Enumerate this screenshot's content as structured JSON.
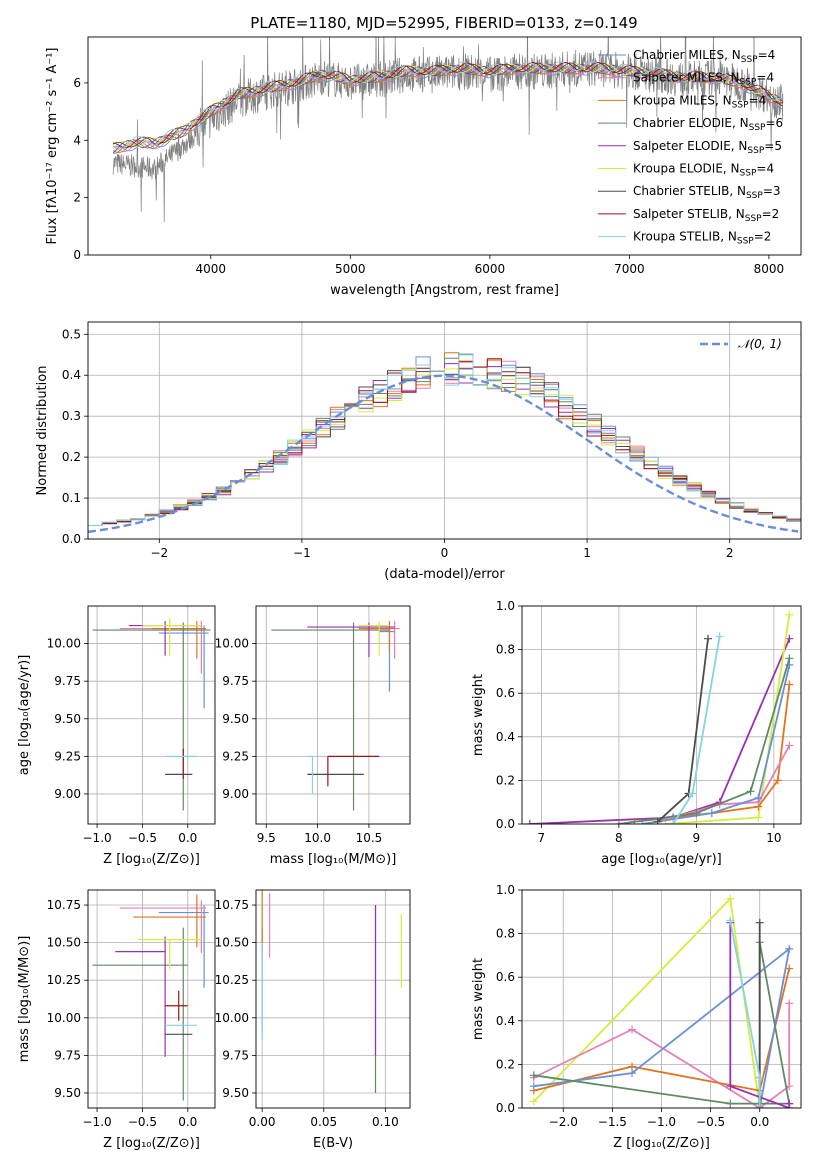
{
  "title": "PLATE=1180, MJD=52995, FIBERID=0133, z=0.149",
  "colors": {
    "blue": "#6a8fd8",
    "pink": "#e87fb4",
    "orange": "#e07420",
    "green": "#5e8a66",
    "purple": "#9b2fb1",
    "yellow": "#d6ec3c",
    "dark": "#4c4c4c",
    "red": "#9c1515",
    "cyan": "#86d2e6",
    "gray": "#808080"
  },
  "chart_data": [
    {
      "id": "spectrum",
      "type": "line",
      "xlabel": "wavelength [Angstrom, rest frame]",
      "ylabel": "Flux [fλ10⁻¹⁷ erg cm⁻² s⁻¹ A⁻¹]",
      "xlim": [
        3120,
        8230
      ],
      "ylim": [
        0,
        7.6
      ],
      "xticks": [
        4000,
        5000,
        6000,
        7000,
        8000
      ],
      "yticks": [
        0,
        2,
        4,
        6
      ],
      "grid": false,
      "legend_position": "top-right",
      "legend": [
        {
          "label": "Chabrier MILES, N",
          "sub": "SSP",
          "suffix": "=4",
          "color": "blue"
        },
        {
          "label": "Salpeter MILES, N",
          "sub": "SSP",
          "suffix": "=4",
          "color": "pink"
        },
        {
          "label": "Kroupa MILES, N",
          "sub": "SSP",
          "suffix": "=4",
          "color": "orange"
        },
        {
          "label": "Chabrier ELODIE, N",
          "sub": "SSP",
          "suffix": "=6",
          "color": "green"
        },
        {
          "label": "Salpeter ELODIE, N",
          "sub": "SSP",
          "suffix": "=5",
          "color": "purple"
        },
        {
          "label": "Kroupa ELODIE, N",
          "sub": "SSP",
          "suffix": "=4",
          "color": "yellow"
        },
        {
          "label": "Chabrier STELIB, N",
          "sub": "SSP",
          "suffix": "=3",
          "color": "dark"
        },
        {
          "label": "Salpeter STELIB, N",
          "sub": "SSP",
          "suffix": "=2",
          "color": "red"
        },
        {
          "label": "Kroupa STELIB, N",
          "sub": "SSP",
          "suffix": "=2",
          "color": "cyan"
        }
      ],
      "data_series": {
        "name": "",
        "color": "gray",
        "x": [
          3300,
          3450,
          3600,
          3800,
          4000,
          4200,
          4400,
          4600,
          4800,
          5000,
          5200,
          5400,
          5600,
          5800,
          6000,
          6200,
          6400,
          6600,
          6800,
          7000,
          7200,
          7400,
          7600,
          7800,
          8100
        ],
        "y": [
          3.2,
          3.1,
          3.0,
          3.8,
          4.7,
          5.4,
          5.7,
          5.9,
          6.2,
          6.0,
          6.1,
          6.3,
          6.3,
          6.4,
          6.3,
          6.4,
          6.4,
          6.5,
          6.5,
          6.4,
          6.3,
          6.1,
          6.2,
          6.0,
          5.3
        ]
      },
      "model_series": {
        "x": [
          3300,
          3450,
          3600,
          3800,
          4000,
          4200,
          4400,
          4600,
          4800,
          5000,
          5200,
          5400,
          5600,
          5800,
          6000,
          6200,
          6400,
          6600,
          6800,
          7000,
          7200,
          7400,
          7600,
          7800,
          8100
        ],
        "y": [
          3.7,
          3.9,
          3.9,
          4.3,
          5.0,
          5.6,
          5.8,
          6.0,
          6.3,
          6.1,
          6.2,
          6.4,
          6.4,
          6.5,
          6.4,
          6.5,
          6.5,
          6.5,
          6.5,
          6.4,
          6.3,
          6.2,
          6.2,
          6.0,
          5.3
        ]
      }
    },
    {
      "id": "residuals",
      "type": "histogram",
      "xlabel": "(data-model)/error",
      "ylabel": "Normed distribution",
      "xlim": [
        -2.5,
        2.5
      ],
      "ylim": [
        0,
        0.53
      ],
      "xticks": [
        -2,
        -1,
        0,
        1,
        2
      ],
      "yticks": [
        0.0,
        0.1,
        0.2,
        0.3,
        0.4,
        0.5
      ],
      "grid": true,
      "legend_position": "top-right",
      "legend_label": "𝒩(0, 1)",
      "gaussian": {
        "mean": 0.0,
        "sigma": 1.0,
        "color": "blue"
      }
    },
    {
      "id": "age-vs-z",
      "type": "errorbar",
      "xlabel": "Z [log₁₀(Z/Z⊙)]",
      "ylabel": "age  [log₁₀(age/yr)]",
      "xlim": [
        -1.1,
        0.3
      ],
      "ylim": [
        8.8,
        10.25
      ],
      "xticks": [
        -1.0,
        -0.5,
        0.0
      ],
      "yticks": [
        9.0,
        9.25,
        9.5,
        9.75,
        10.0
      ],
      "grid": true,
      "points": [
        {
          "color": "blue",
          "x": 0.18,
          "xerr": [
            0.5,
            0.05
          ],
          "y": 10.07,
          "yerr": [
            0.5,
            0.05
          ]
        },
        {
          "color": "pink",
          "x": 0.15,
          "xerr": [
            0.9,
            0.05
          ],
          "y": 10.1,
          "yerr": [
            0.3,
            0.05
          ]
        },
        {
          "color": "orange",
          "x": 0.1,
          "xerr": [
            0.5,
            0.1
          ],
          "y": 10.1,
          "yerr": [
            0.2,
            0.05
          ]
        },
        {
          "color": "green",
          "x": -0.05,
          "xerr": [
            1.0,
            0.3
          ],
          "y": 10.09,
          "yerr": [
            1.2,
            0.05
          ]
        },
        {
          "color": "purple",
          "x": -0.25,
          "xerr": [
            0.4,
            0.4
          ],
          "y": 10.12,
          "yerr": [
            0.2,
            0.03
          ]
        },
        {
          "color": "yellow",
          "x": -0.2,
          "xerr": [
            0.3,
            0.35
          ],
          "y": 10.12,
          "yerr": [
            0.2,
            0.05
          ]
        },
        {
          "color": "dark",
          "x": -0.1,
          "xerr": [
            0.15,
            0.15
          ],
          "y": 9.13,
          "yerr": [
            0.0,
            0.0
          ]
        },
        {
          "color": "red",
          "x": -0.05,
          "xerr": [
            0.0,
            0.0
          ],
          "y": 9.3,
          "yerr": [
            0.2,
            0.0
          ]
        },
        {
          "color": "cyan",
          "x": -0.1,
          "xerr": [
            0.15,
            0.2
          ],
          "y": 9.25,
          "yerr": [
            0.0,
            0.0
          ]
        }
      ]
    },
    {
      "id": "age-vs-mass",
      "type": "errorbar",
      "xlabel": "mass [log₁₀(M/M⊙)]",
      "ylabel": "",
      "xlim": [
        9.4,
        10.9
      ],
      "ylim": [
        8.8,
        10.25
      ],
      "xticks": [
        9.5,
        10.0,
        10.5
      ],
      "yticks": [
        9.0,
        9.25,
        9.5,
        9.75,
        10.0
      ],
      "grid": true,
      "points": [
        {
          "color": "blue",
          "x": 10.7,
          "xerr": [
            0.1,
            0.05
          ],
          "y": 10.08,
          "yerr": [
            0.4,
            0.03
          ]
        },
        {
          "color": "pink",
          "x": 10.75,
          "xerr": [
            0.3,
            0.05
          ],
          "y": 10.1,
          "yerr": [
            0.2,
            0.05
          ]
        },
        {
          "color": "orange",
          "x": 10.7,
          "xerr": [
            0.3,
            0.05
          ],
          "y": 10.1,
          "yerr": [
            0.15,
            0.05
          ]
        },
        {
          "color": "green",
          "x": 10.35,
          "xerr": [
            0.8,
            0.35
          ],
          "y": 10.09,
          "yerr": [
            1.2,
            0.05
          ]
        },
        {
          "color": "purple",
          "x": 10.5,
          "xerr": [
            0.6,
            0.25
          ],
          "y": 10.11,
          "yerr": [
            0.2,
            0.03
          ]
        },
        {
          "color": "yellow",
          "x": 10.6,
          "xerr": [
            0.2,
            0.1
          ],
          "y": 10.12,
          "yerr": [
            0.2,
            0.03
          ]
        },
        {
          "color": "dark",
          "x": 10.2,
          "xerr": [
            0.3,
            0.25
          ],
          "y": 9.13,
          "yerr": [
            0.0,
            0.0
          ]
        },
        {
          "color": "red",
          "x": 10.1,
          "xerr": [
            0.0,
            0.5
          ],
          "y": 9.25,
          "yerr": [
            0.2,
            0.0
          ]
        },
        {
          "color": "cyan",
          "x": 9.95,
          "xerr": [
            0.05,
            0.0
          ],
          "y": 9.25,
          "yerr": [
            0.25,
            0.0
          ]
        }
      ]
    },
    {
      "id": "weight-vs-age",
      "type": "line",
      "xlabel": "age  [log₁₀(age/yr)]",
      "ylabel": "mass weight",
      "xlim": [
        6.75,
        10.35
      ],
      "ylim": [
        0,
        1.0
      ],
      "xticks": [
        7,
        8,
        9,
        10
      ],
      "yticks": [
        0.0,
        0.2,
        0.4,
        0.6,
        0.8,
        1.0
      ],
      "grid": true,
      "series": [
        {
          "color": "purple",
          "x": [
            6.85,
            8.7,
            9.3,
            10.2
          ],
          "y": [
            0.0,
            0.03,
            0.1,
            0.85
          ]
        },
        {
          "color": "yellow",
          "x": [
            8.6,
            9.8,
            10.2
          ],
          "y": [
            0.0,
            0.03,
            0.96
          ]
        },
        {
          "color": "orange",
          "x": [
            8.2,
            9.2,
            9.8,
            10.05,
            10.2
          ],
          "y": [
            0.01,
            0.05,
            0.08,
            0.2,
            0.64
          ]
        },
        {
          "color": "pink",
          "x": [
            8.5,
            9.3,
            9.8,
            10.2
          ],
          "y": [
            0.01,
            0.09,
            0.1,
            0.36
          ]
        },
        {
          "color": "blue",
          "x": [
            8.3,
            9.2,
            9.8,
            10.2
          ],
          "y": [
            0.0,
            0.05,
            0.12,
            0.73
          ]
        },
        {
          "color": "green",
          "x": [
            8.0,
            9.0,
            9.7,
            10.2
          ],
          "y": [
            0.0,
            0.05,
            0.15,
            0.76
          ]
        },
        {
          "color": "dark",
          "x": [
            8.5,
            8.9,
            9.15
          ],
          "y": [
            0.01,
            0.14,
            0.85
          ]
        },
        {
          "color": "cyan",
          "x": [
            8.7,
            8.95,
            9.3
          ],
          "y": [
            0.0,
            0.14,
            0.86
          ]
        }
      ]
    },
    {
      "id": "mass-vs-z",
      "type": "errorbar",
      "xlabel": "Z [log₁₀(Z/Z⊙)]",
      "ylabel": "mass [log₁₀(M/M⊙)]",
      "xlim": [
        -1.1,
        0.3
      ],
      "ylim": [
        9.4,
        10.85
      ],
      "xticks": [
        -1.0,
        -0.5,
        0.0
      ],
      "yticks": [
        9.5,
        9.75,
        10.0,
        10.25,
        10.5,
        10.75
      ],
      "grid": true,
      "points": [
        {
          "color": "blue",
          "x": 0.18,
          "xerr": [
            0.5,
            0.05
          ],
          "y": 10.7,
          "yerr": [
            0.5,
            0.05
          ]
        },
        {
          "color": "pink",
          "x": 0.15,
          "xerr": [
            0.9,
            0.05
          ],
          "y": 10.73,
          "yerr": [
            0.3,
            0.05
          ]
        },
        {
          "color": "orange",
          "x": 0.1,
          "xerr": [
            0.7,
            0.1
          ],
          "y": 10.67,
          "yerr": [
            0.2,
            0.15
          ]
        },
        {
          "color": "green",
          "x": -0.05,
          "xerr": [
            1.0,
            0.05
          ],
          "y": 10.35,
          "yerr": [
            0.9,
            0.25
          ]
        },
        {
          "color": "purple",
          "x": -0.25,
          "xerr": [
            0.55,
            0.0
          ],
          "y": 10.44,
          "yerr": [
            0.7,
            0.1
          ]
        },
        {
          "color": "yellow",
          "x": -0.2,
          "xerr": [
            0.35,
            0.35
          ],
          "y": 10.52,
          "yerr": [
            0.2,
            0.0
          ]
        },
        {
          "color": "dark",
          "x": -0.1,
          "xerr": [
            0.15,
            0.15
          ],
          "y": 9.89,
          "yerr": [
            0.0,
            0.0
          ]
        },
        {
          "color": "red",
          "x": -0.1,
          "xerr": [
            0.15,
            0.1
          ],
          "y": 10.08,
          "yerr": [
            0.1,
            0.1
          ]
        },
        {
          "color": "cyan",
          "x": -0.1,
          "xerr": [
            0.15,
            0.2
          ],
          "y": 9.95,
          "yerr": [
            0.0,
            0.0
          ]
        }
      ]
    },
    {
      "id": "mass-vs-ebv",
      "type": "errorbar",
      "xlabel": "E(B-V)",
      "ylabel": "",
      "xlim": [
        -0.005,
        0.12
      ],
      "ylim": [
        9.4,
        10.85
      ],
      "xticks": [
        0.0,
        0.05,
        0.1
      ],
      "yticks": [
        9.5,
        9.75,
        10.0,
        10.25,
        10.5,
        10.75
      ],
      "grid": true,
      "points": [
        {
          "color": "blue",
          "x": 0.0,
          "xerr": [
            0,
            0
          ],
          "y": 10.5,
          "yerr": [
            0.6,
            0.1
          ]
        },
        {
          "color": "pink",
          "x": 0.006,
          "xerr": [
            0,
            0
          ],
          "y": 10.6,
          "yerr": [
            0.2,
            0.23
          ]
        },
        {
          "color": "orange",
          "x": 0.0,
          "xerr": [
            0,
            0
          ],
          "y": 10.65,
          "yerr": [
            0.25,
            0.2
          ]
        },
        {
          "color": "green",
          "x": 0.092,
          "xerr": [
            0,
            0
          ],
          "y": 10.3,
          "yerr": [
            0.8,
            0.44
          ]
        },
        {
          "color": "purple",
          "x": 0.092,
          "xerr": [
            0,
            0
          ],
          "y": 10.3,
          "yerr": [
            0.55,
            0.45
          ]
        },
        {
          "color": "yellow",
          "x": 0.113,
          "xerr": [
            0,
            0
          ],
          "y": 10.45,
          "yerr": [
            0.25,
            0.24
          ]
        },
        {
          "color": "cyan",
          "x": 0.0,
          "xerr": [
            0,
            0
          ],
          "y": 10.2,
          "yerr": [
            0.35,
            0.3
          ]
        }
      ]
    },
    {
      "id": "weight-vs-z",
      "type": "line",
      "xlabel": "Z [log₁₀(Z/Z⊙)]",
      "ylabel": "mass weight",
      "xlim": [
        -2.42,
        0.42
      ],
      "ylim": [
        0,
        1.0
      ],
      "xticks": [
        -2.0,
        -1.5,
        -1.0,
        -0.5,
        0.0
      ],
      "yticks": [
        0.0,
        0.2,
        0.4,
        0.6,
        0.8,
        1.0
      ],
      "grid": true,
      "series": [
        {
          "color": "yellow",
          "x": [
            -2.3,
            -0.3,
            0.0
          ],
          "y": [
            0.03,
            0.96,
            0.0
          ]
        },
        {
          "color": "pink",
          "x": [
            -2.3,
            -1.3,
            0.0,
            0.3,
            0.3
          ],
          "y": [
            0.14,
            0.36,
            0.0,
            0.1,
            0.48
          ]
        },
        {
          "color": "orange",
          "x": [
            -2.3,
            -1.3,
            0.0,
            0.3
          ],
          "y": [
            0.08,
            0.19,
            0.08,
            0.64
          ]
        },
        {
          "color": "blue",
          "x": [
            -2.3,
            -1.3,
            0.3,
            0.0
          ],
          "y": [
            0.1,
            0.16,
            0.73,
            0.0
          ]
        },
        {
          "color": "green",
          "x": [
            -2.3,
            -0.3,
            0.3,
            0.0,
            0.0
          ],
          "y": [
            0.15,
            0.02,
            0.02,
            0.76,
            0.0
          ]
        },
        {
          "color": "purple",
          "x": [
            -0.3,
            -0.3,
            0.3,
            0.3
          ],
          "y": [
            0.85,
            0.1,
            0.0,
            0.02
          ]
        },
        {
          "color": "dark",
          "x": [
            0.0,
            0.0,
            0.0
          ],
          "y": [
            0.85,
            0.14,
            0.0
          ]
        },
        {
          "color": "cyan",
          "x": [
            -0.3,
            0.0,
            0.0
          ],
          "y": [
            0.86,
            0.14,
            0.0
          ]
        }
      ]
    }
  ]
}
